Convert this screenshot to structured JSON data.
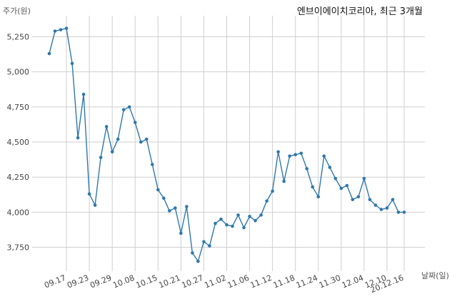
{
  "chart_data": {
    "type": "line",
    "title": "엔브이에이치코리아, 최근 3개월",
    "ylabel": "주가(원)",
    "xlabel": "날짜(일)",
    "ylim": [
      3580,
      5400
    ],
    "yticks": [
      3750,
      4000,
      4250,
      4500,
      4750,
      5000,
      5250
    ],
    "ytick_labels": [
      "3,750",
      "4,000",
      "4,250",
      "4,500",
      "4,750",
      "5,000",
      "5,250"
    ],
    "xtick_labels": [
      "09.17",
      "09.23",
      "09.29",
      "10.08",
      "10.15",
      "10.21",
      "10.27",
      "11.02",
      "11.06",
      "11.12",
      "11.18",
      "11.24",
      "11.30",
      "12.04",
      "12.10",
      "20.12.16"
    ],
    "xtick_index": [
      3,
      7,
      11,
      15,
      19,
      23,
      27,
      31,
      35,
      39,
      43,
      47,
      51,
      55,
      59,
      62
    ],
    "grid": true,
    "color": "#2e78ad",
    "series": [
      {
        "values": [
          5130,
          5290,
          5300,
          5310,
          5060,
          4530,
          4840,
          4130,
          4050,
          4390,
          4610,
          4430,
          4520,
          4730,
          4750,
          4640,
          4500,
          4520,
          4340,
          4160,
          4100,
          4010,
          4030,
          3850,
          4040,
          3710,
          3650,
          3790,
          3760,
          3920,
          3950,
          3910,
          3900,
          3980,
          3890,
          3970,
          3940,
          3980,
          4080,
          4150,
          4430,
          4220,
          4400,
          4410,
          4420,
          4310,
          4180,
          4110,
          4400,
          4320,
          4240,
          4170,
          4190,
          4090,
          4110,
          4240,
          4090,
          4050,
          4020,
          4030,
          4090,
          4000,
          4000
        ]
      }
    ]
  }
}
